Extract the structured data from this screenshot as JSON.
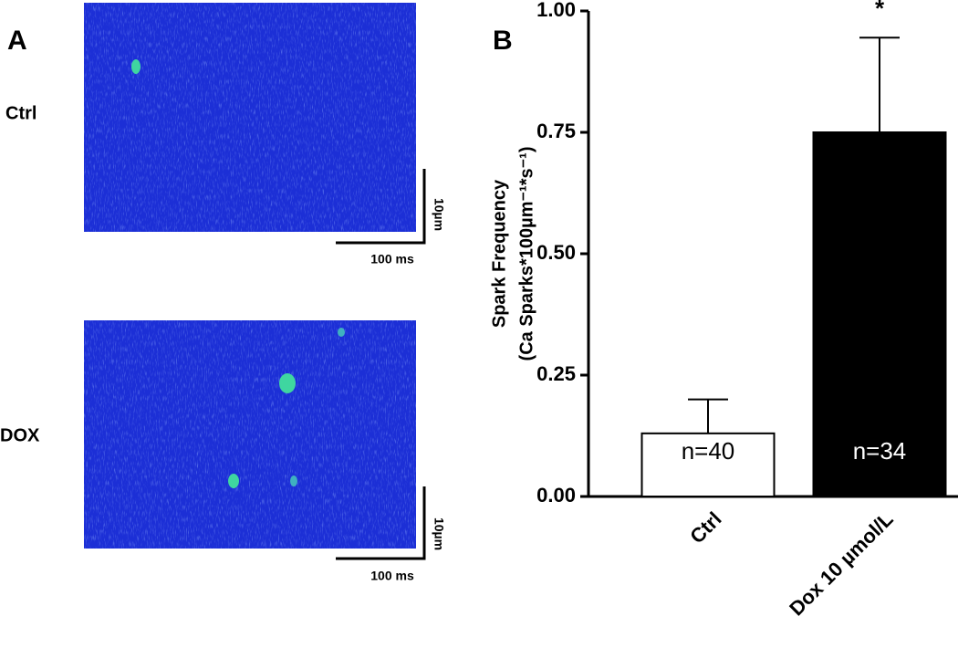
{
  "panel_a": {
    "label": "A",
    "rows": [
      {
        "label": "Ctrl",
        "scale_y": "10µm",
        "scale_x": "100 ms"
      },
      {
        "label": "DOX",
        "scale_y": "10µm",
        "scale_x": "100 ms"
      }
    ]
  },
  "chart_data": {
    "type": "bar",
    "panel_label": "B",
    "y_label": [
      "Spark Frequency",
      "(Ca Sparks*100µm⁻¹*s⁻¹)"
    ],
    "categories": [
      "Ctrl",
      "Dox 10 µmol/L"
    ],
    "values": [
      0.13,
      0.75
    ],
    "errors": [
      0.07,
      0.195
    ],
    "colors": [
      "#ffffff",
      "#000000"
    ],
    "annotations": [
      "n=40",
      "n=34"
    ],
    "significance": [
      null,
      "*"
    ],
    "ylim": [
      0,
      1
    ],
    "yticks": [
      {
        "value": 0,
        "label": "0.00"
      },
      {
        "value": 0.25,
        "label": "0.25"
      },
      {
        "value": 0.5,
        "label": "0.50"
      },
      {
        "value": 0.75,
        "label": "0.75"
      },
      {
        "value": 1,
        "label": "1.00"
      }
    ]
  }
}
